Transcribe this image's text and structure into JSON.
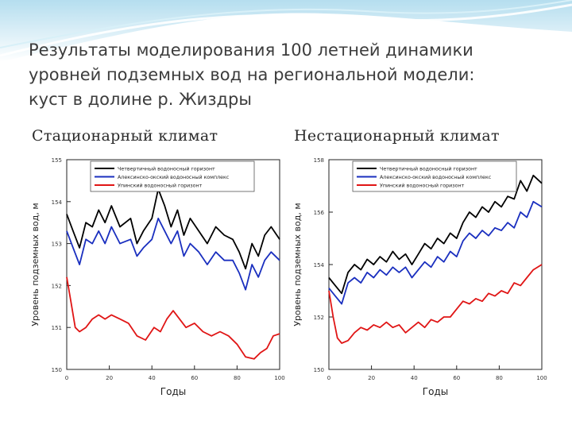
{
  "slide": {
    "title_lines": [
      "Результаты моделирования 100 летней динамики",
      "уровней подземных вод на региональной модели:",
      "куст в долине р. Жиздры"
    ],
    "subtitle_left": "Стационарный климат",
    "subtitle_right": "Нестационарный климат",
    "colors": {
      "black": "#000000",
      "blue": "#1a2fbf",
      "red": "#e01515"
    }
  },
  "chart_data": [
    {
      "type": "line",
      "xlabel": "Годы",
      "ylabel": "Уровень подземных вод, м",
      "xlim": [
        0,
        100
      ],
      "ylim": [
        150,
        155
      ],
      "xticks": [
        "0",
        "20",
        "40",
        "60",
        "80",
        "100"
      ],
      "yticks": [
        "150",
        "151",
        "152",
        "153",
        "154",
        "155"
      ],
      "legend_position": "top",
      "series": [
        {
          "name": "Четвертичный водоносный горизонт",
          "color": "#000000",
          "x": [
            0,
            3,
            6,
            9,
            12,
            15,
            18,
            21,
            25,
            30,
            33,
            36,
            40,
            43,
            46,
            49,
            52,
            55,
            58,
            62,
            66,
            70,
            74,
            78,
            81,
            84,
            87,
            90,
            93,
            96,
            100
          ],
          "y": [
            153.7,
            153.3,
            152.9,
            153.5,
            153.4,
            153.8,
            153.5,
            153.9,
            153.4,
            153.6,
            153.0,
            153.3,
            153.6,
            154.3,
            153.9,
            153.4,
            153.8,
            153.2,
            153.6,
            153.3,
            153.0,
            153.4,
            153.2,
            153.1,
            152.8,
            152.4,
            153.0,
            152.7,
            153.2,
            153.4,
            153.1
          ]
        },
        {
          "name": "Алексинско-окский водоносный комплекс",
          "color": "#1a2fbf",
          "x": [
            0,
            3,
            6,
            9,
            12,
            15,
            18,
            21,
            25,
            30,
            33,
            36,
            40,
            43,
            46,
            49,
            52,
            55,
            58,
            62,
            66,
            70,
            74,
            78,
            81,
            84,
            87,
            90,
            93,
            96,
            100
          ],
          "y": [
            153.3,
            152.9,
            152.5,
            153.1,
            153.0,
            153.3,
            153.0,
            153.4,
            153.0,
            153.1,
            152.7,
            152.9,
            153.1,
            153.6,
            153.3,
            153.0,
            153.3,
            152.7,
            153.0,
            152.8,
            152.5,
            152.8,
            152.6,
            152.6,
            152.3,
            151.9,
            152.5,
            152.2,
            152.6,
            152.8,
            152.6
          ]
        },
        {
          "name": "Упинский водоносный горизонт",
          "color": "#e01515",
          "x": [
            0,
            2,
            4,
            6,
            9,
            12,
            15,
            18,
            21,
            25,
            29,
            33,
            37,
            41,
            44,
            47,
            50,
            53,
            56,
            60,
            64,
            68,
            72,
            76,
            80,
            84,
            88,
            91,
            94,
            97,
            100
          ],
          "y": [
            152.2,
            151.6,
            151.0,
            150.9,
            151.0,
            151.2,
            151.3,
            151.2,
            151.3,
            151.2,
            151.1,
            150.8,
            150.7,
            151.0,
            150.9,
            151.2,
            151.4,
            151.2,
            151.0,
            151.1,
            150.9,
            150.8,
            150.9,
            150.8,
            150.6,
            150.3,
            150.25,
            150.4,
            150.5,
            150.8,
            150.85
          ]
        }
      ]
    },
    {
      "type": "line",
      "xlabel": "Годы",
      "ylabel": "Уровень подземных вод, м",
      "xlim": [
        0,
        100
      ],
      "ylim": [
        150,
        158
      ],
      "xticks": [
        "0",
        "20",
        "40",
        "60",
        "80",
        "100"
      ],
      "yticks": [
        "150",
        "152",
        "154",
        "156",
        "158"
      ],
      "legend_position": "top",
      "series": [
        {
          "name": "Четвертичный водоносный горизонт",
          "color": "#000000",
          "x": [
            0,
            3,
            6,
            9,
            12,
            15,
            18,
            21,
            24,
            27,
            30,
            33,
            36,
            39,
            42,
            45,
            48,
            51,
            54,
            57,
            60,
            63,
            66,
            69,
            72,
            75,
            78,
            81,
            84,
            87,
            90,
            93,
            96,
            100
          ],
          "y": [
            153.5,
            153.2,
            152.9,
            153.7,
            154.0,
            153.8,
            154.2,
            154.0,
            154.3,
            154.1,
            154.5,
            154.2,
            154.4,
            154.0,
            154.4,
            154.8,
            154.6,
            155.0,
            154.8,
            155.2,
            155.0,
            155.6,
            156.0,
            155.8,
            156.2,
            156.0,
            156.4,
            156.2,
            156.6,
            156.5,
            157.2,
            156.8,
            157.4,
            157.1
          ]
        },
        {
          "name": "Алексинско-окский водоносный комплекс",
          "color": "#1a2fbf",
          "x": [
            0,
            3,
            6,
            9,
            12,
            15,
            18,
            21,
            24,
            27,
            30,
            33,
            36,
            39,
            42,
            45,
            48,
            51,
            54,
            57,
            60,
            63,
            66,
            69,
            72,
            75,
            78,
            81,
            84,
            87,
            90,
            93,
            96,
            100
          ],
          "y": [
            153.1,
            152.8,
            152.5,
            153.3,
            153.5,
            153.3,
            153.7,
            153.5,
            153.8,
            153.6,
            153.9,
            153.7,
            153.9,
            153.5,
            153.8,
            154.1,
            153.9,
            154.3,
            154.1,
            154.5,
            154.3,
            154.9,
            155.2,
            155.0,
            155.3,
            155.1,
            155.4,
            155.3,
            155.6,
            155.4,
            156.0,
            155.8,
            156.4,
            156.2
          ]
        },
        {
          "name": "Упинский водоносный горизонт",
          "color": "#e01515",
          "x": [
            0,
            2,
            4,
            6,
            9,
            12,
            15,
            18,
            21,
            24,
            27,
            30,
            33,
            36,
            39,
            42,
            45,
            48,
            51,
            54,
            57,
            60,
            63,
            66,
            69,
            72,
            75,
            78,
            81,
            84,
            87,
            90,
            93,
            96,
            100
          ],
          "y": [
            153.0,
            152.0,
            151.2,
            151.0,
            151.1,
            151.4,
            151.6,
            151.5,
            151.7,
            151.6,
            151.8,
            151.6,
            151.7,
            151.4,
            151.6,
            151.8,
            151.6,
            151.9,
            151.8,
            152.0,
            152.0,
            152.3,
            152.6,
            152.5,
            152.7,
            152.6,
            152.9,
            152.8,
            153.0,
            152.9,
            153.3,
            153.2,
            153.5,
            153.8,
            154.0
          ]
        }
      ]
    }
  ]
}
